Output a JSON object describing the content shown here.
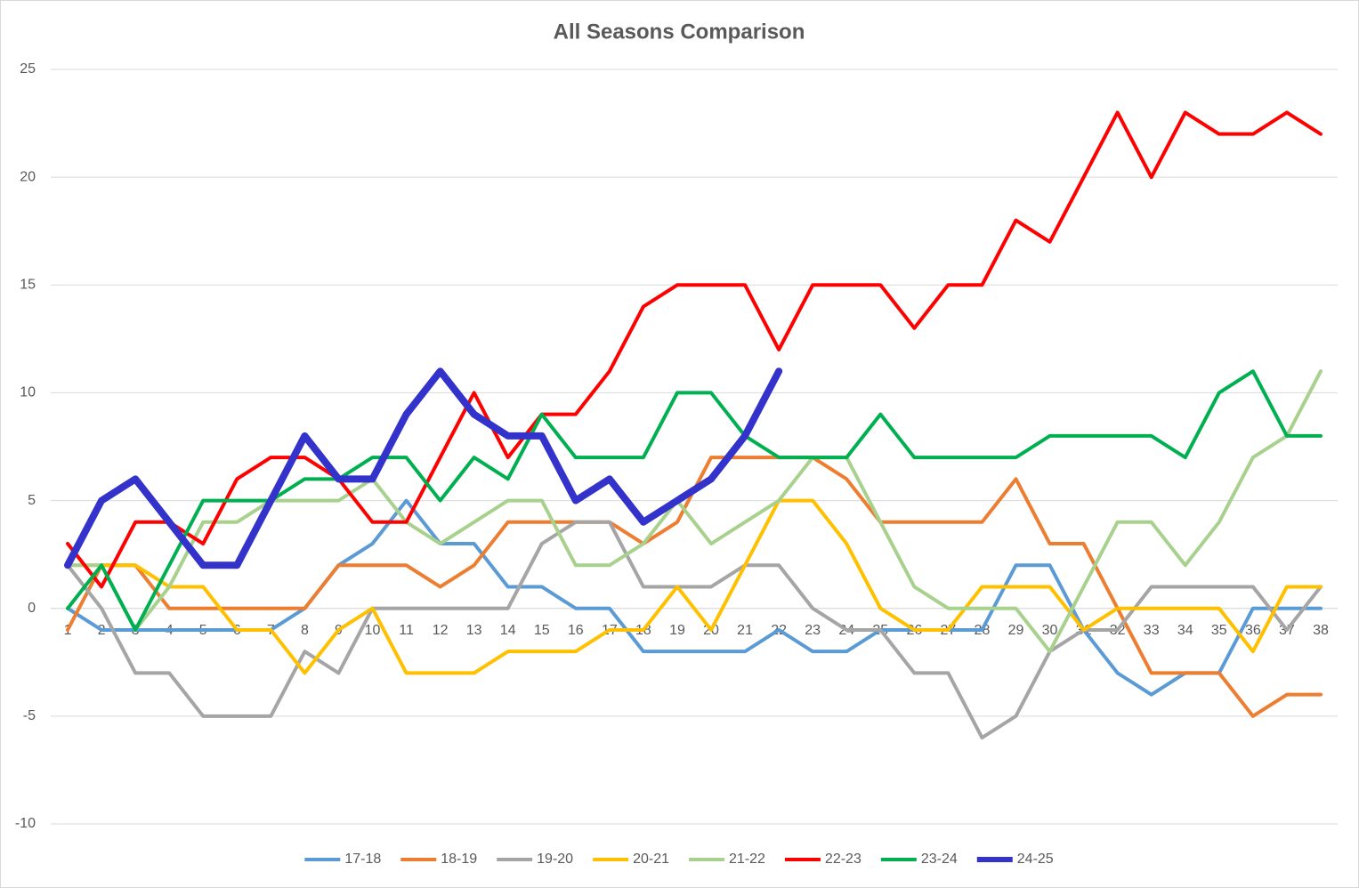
{
  "chart_data": {
    "type": "line",
    "title": "All Seasons Comparison",
    "categories": [
      "1",
      "2",
      "3",
      "4",
      "5",
      "6",
      "7",
      "8",
      "9",
      "10",
      "11",
      "12",
      "13",
      "14",
      "15",
      "16",
      "17",
      "18",
      "19",
      "20",
      "21",
      "22",
      "23",
      "24",
      "25",
      "26",
      "27",
      "28",
      "29",
      "30",
      "31",
      "32",
      "33",
      "34",
      "35",
      "36",
      "37",
      "38"
    ],
    "ylim": [
      -10,
      25
    ],
    "yticks": [
      -10,
      -5,
      0,
      5,
      10,
      15,
      20,
      25
    ],
    "grid": true,
    "legend": "bottom",
    "series": [
      {
        "name": "17-18",
        "color": "#5b9bd5",
        "values": [
          0,
          -1,
          -1,
          -1,
          -1,
          -1,
          -1,
          0,
          2,
          3,
          5,
          3,
          3,
          1,
          1,
          0,
          0,
          -2,
          -2,
          -2,
          -2,
          -1,
          -2,
          -2,
          -1,
          -1,
          -1,
          -1,
          2,
          2,
          -1,
          -3,
          -4,
          -3,
          -3,
          0,
          0,
          0
        ]
      },
      {
        "name": "18-19",
        "color": "#ed7d31",
        "values": [
          -1,
          2,
          2,
          0,
          0,
          0,
          0,
          0,
          2,
          2,
          2,
          1,
          2,
          4,
          4,
          4,
          4,
          3,
          4,
          7,
          7,
          7,
          7,
          6,
          4,
          4,
          4,
          4,
          6,
          3,
          3,
          0,
          -3,
          -3,
          -3,
          -5,
          -4,
          -4
        ]
      },
      {
        "name": "19-20",
        "color": "#a5a5a5",
        "values": [
          2,
          0,
          -3,
          -3,
          -5,
          -5,
          -5,
          -2,
          -3,
          0,
          0,
          0,
          0,
          0,
          3,
          4,
          4,
          1,
          1,
          1,
          2,
          2,
          0,
          -1,
          -1,
          -3,
          -3,
          -6,
          -5,
          -2,
          -1,
          -1,
          1,
          1,
          1,
          1,
          -1,
          1
        ]
      },
      {
        "name": "20-21",
        "color": "#ffc000",
        "values": [
          2,
          2,
          2,
          1,
          1,
          -1,
          -1,
          -3,
          -1,
          0,
          -3,
          -3,
          -3,
          -2,
          -2,
          -2,
          -1,
          -1,
          1,
          -1,
          2,
          5,
          5,
          3,
          0,
          -1,
          -1,
          1,
          1,
          1,
          -1,
          0,
          0,
          0,
          0,
          -2,
          1,
          1
        ]
      },
      {
        "name": "21-22",
        "color": "#a9d18e",
        "values": [
          2,
          2,
          -1,
          1,
          4,
          4,
          5,
          5,
          5,
          6,
          4,
          3,
          4,
          5,
          5,
          2,
          2,
          3,
          5,
          3,
          4,
          5,
          7,
          7,
          4,
          1,
          0,
          0,
          0,
          -2,
          1,
          4,
          4,
          2,
          4,
          7,
          8,
          11
        ]
      },
      {
        "name": "22-23",
        "color": "#ff0000",
        "values": [
          3,
          1,
          4,
          4,
          3,
          6,
          7,
          7,
          6,
          4,
          4,
          7,
          10,
          7,
          9,
          9,
          11,
          14,
          15,
          15,
          15,
          12,
          15,
          15,
          15,
          13,
          15,
          15,
          18,
          17,
          20,
          23,
          20,
          23,
          22,
          22,
          23,
          22
        ]
      },
      {
        "name": "23-24",
        "color": "#00b050",
        "values": [
          0,
          2,
          -1,
          2,
          5,
          5,
          5,
          6,
          6,
          7,
          7,
          5,
          7,
          6,
          9,
          7,
          7,
          7,
          10,
          10,
          8,
          7,
          7,
          7,
          9,
          7,
          7,
          7,
          7,
          8,
          8,
          8,
          8,
          7,
          10,
          11,
          8,
          8
        ]
      },
      {
        "name": "24-25",
        "color": "#3333cc",
        "values": [
          2,
          5,
          6,
          4,
          2,
          2,
          5,
          8,
          6,
          6,
          9,
          11,
          9,
          8,
          8,
          5,
          6,
          4,
          5,
          6,
          8,
          11,
          null,
          null,
          null,
          null,
          null,
          null,
          null,
          null,
          null,
          null,
          null,
          null,
          null,
          null,
          null,
          null
        ]
      }
    ]
  }
}
